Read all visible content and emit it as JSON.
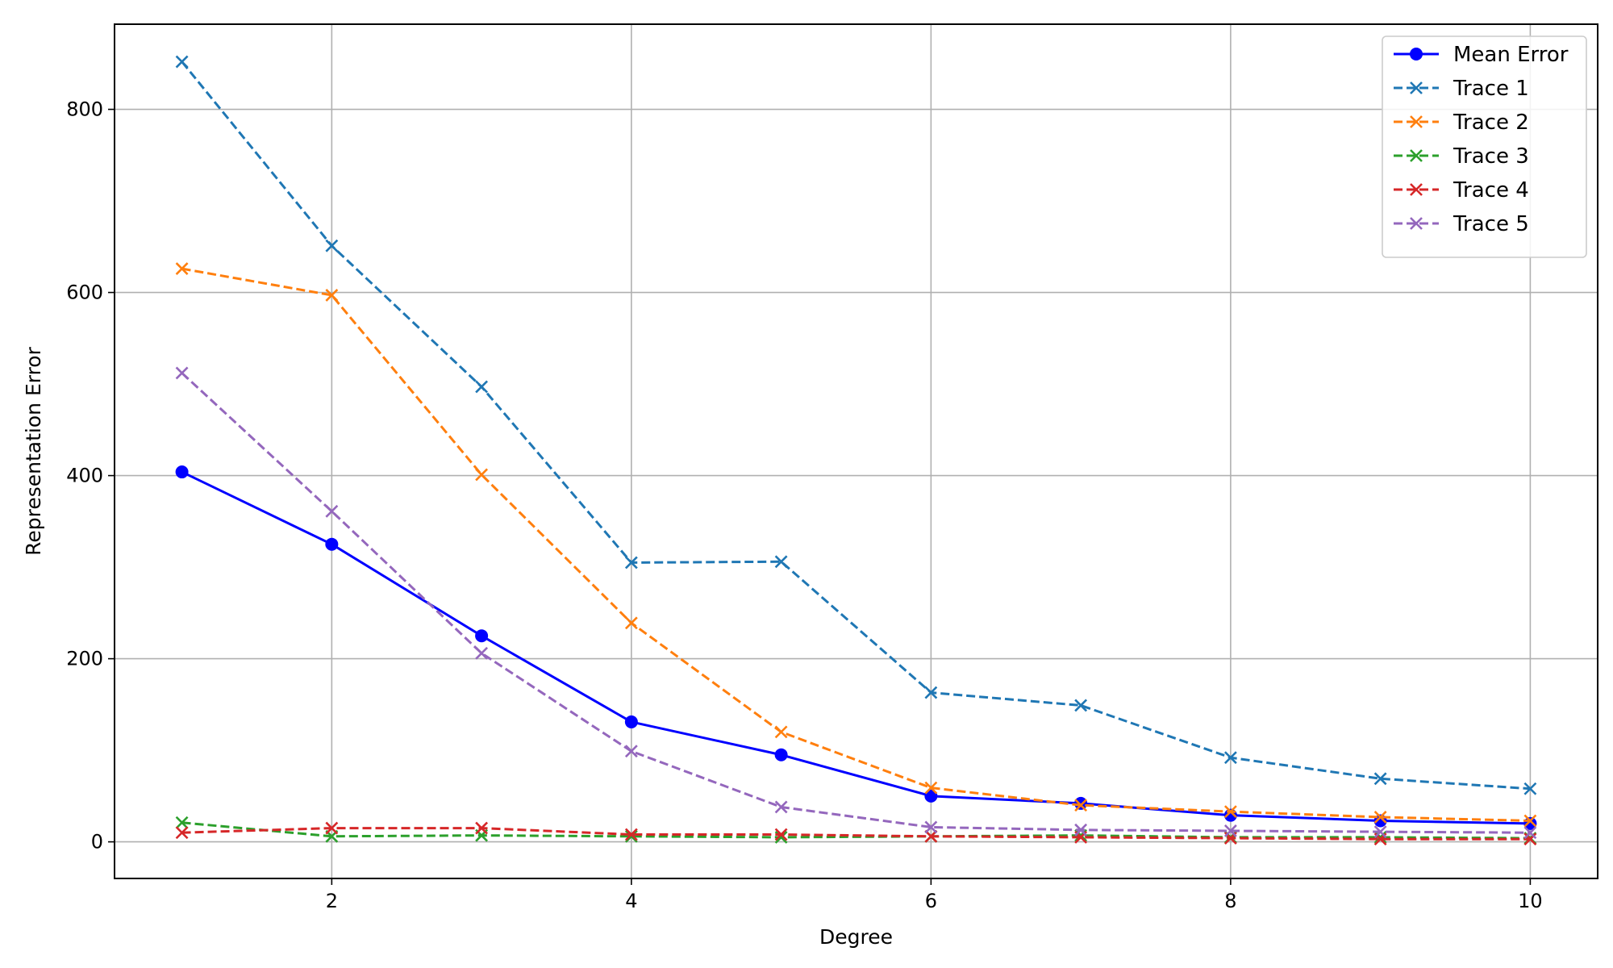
{
  "chart_data": {
    "type": "line",
    "title": "",
    "xlabel": "Degree",
    "ylabel": "Representation Error",
    "x": [
      1,
      2,
      3,
      4,
      5,
      6,
      7,
      8,
      9,
      10
    ],
    "xlim": [
      0.55,
      10.45
    ],
    "ylim": [
      -40,
      893
    ],
    "xticks": [
      2,
      4,
      6,
      8,
      10
    ],
    "yticks": [
      0,
      200,
      400,
      600,
      800
    ],
    "grid": true,
    "legend_position": "top-right",
    "series": [
      {
        "name": "Mean Error",
        "color": "#0000ff",
        "style": "solid",
        "marker": "circle",
        "values": [
          404,
          325,
          225,
          131,
          95,
          50,
          42,
          29,
          23,
          20
        ]
      },
      {
        "name": "Trace 1",
        "color": "#1f77b4",
        "style": "dashed",
        "marker": "x",
        "values": [
          852,
          651,
          497,
          305,
          306,
          163,
          149,
          92,
          69,
          58
        ]
      },
      {
        "name": "Trace 2",
        "color": "#ff7f0e",
        "style": "dashed",
        "marker": "x",
        "values": [
          626,
          597,
          401,
          239,
          120,
          59,
          40,
          33,
          27,
          23
        ]
      },
      {
        "name": "Trace 3",
        "color": "#2ca02c",
        "style": "dashed",
        "marker": "x",
        "values": [
          21,
          6,
          7,
          6,
          5,
          6,
          7,
          5,
          5,
          4
        ]
      },
      {
        "name": "Trace 4",
        "color": "#d62728",
        "style": "dashed",
        "marker": "x",
        "values": [
          10,
          15,
          15,
          8,
          8,
          6,
          5,
          4,
          3,
          3
        ]
      },
      {
        "name": "Trace 5",
        "color": "#9467bd",
        "style": "dashed",
        "marker": "x",
        "values": [
          512,
          361,
          206,
          99,
          38,
          16,
          13,
          12,
          11,
          10
        ]
      }
    ]
  }
}
